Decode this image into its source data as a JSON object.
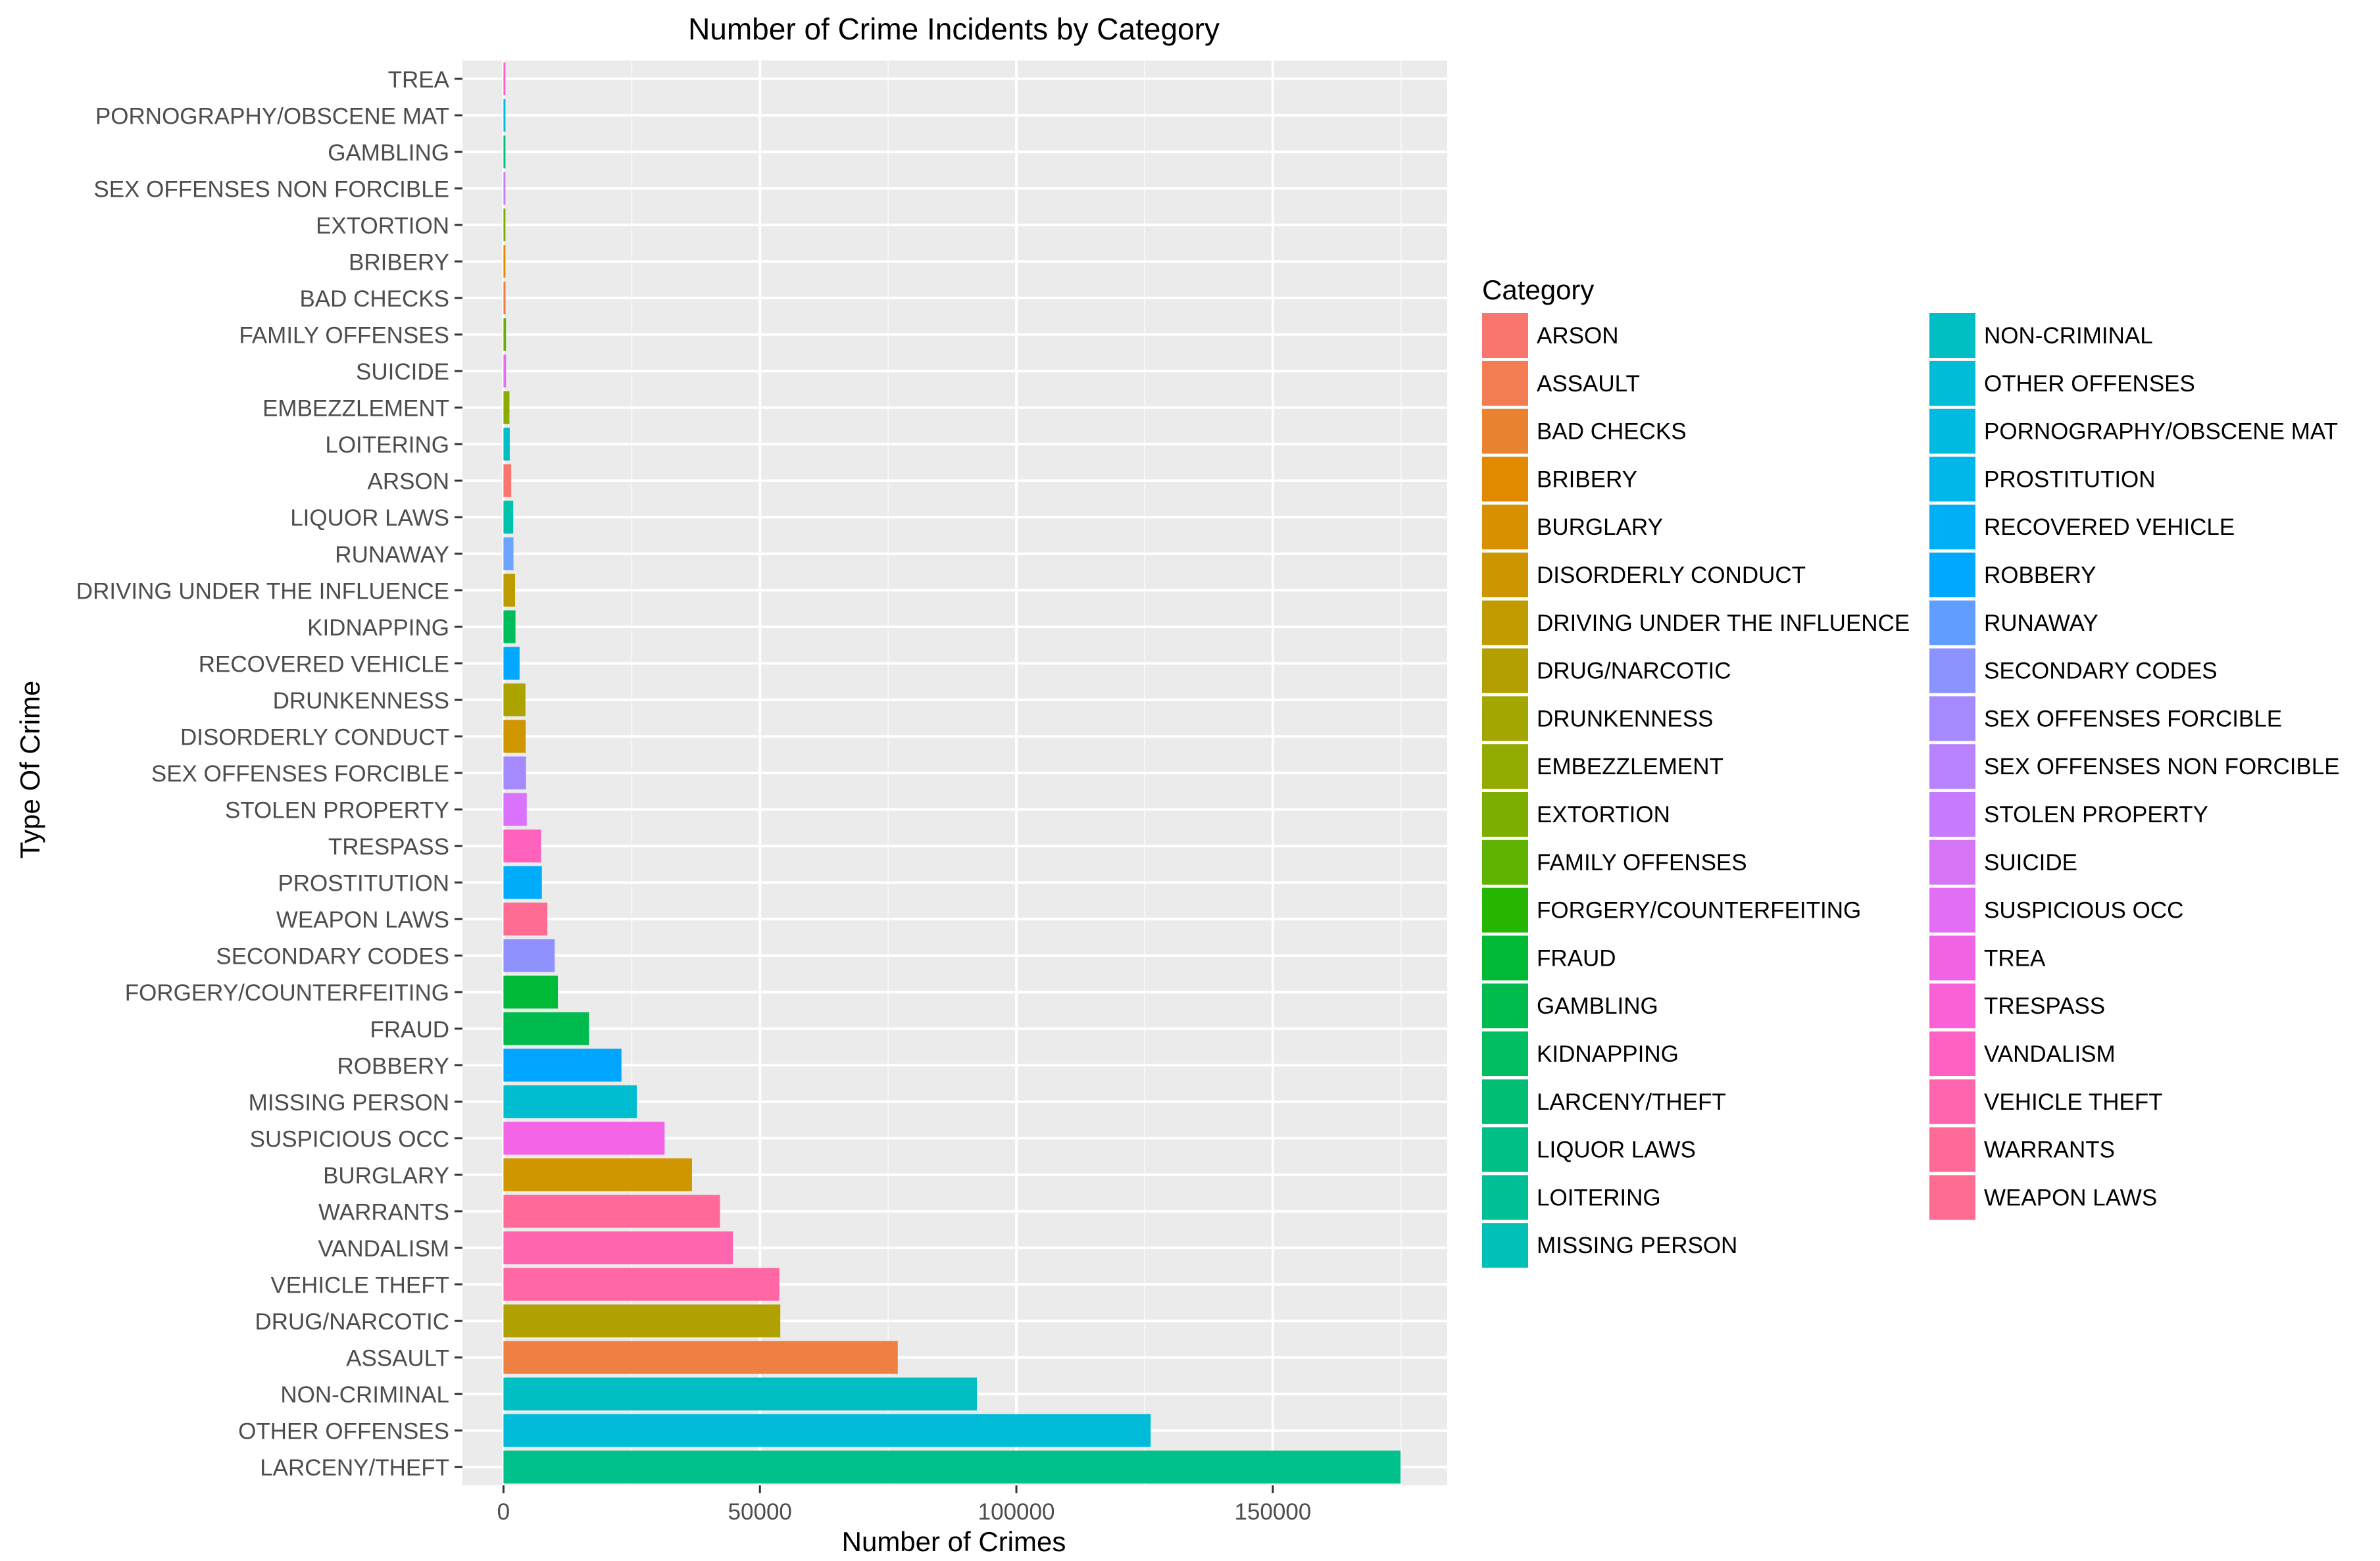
{
  "chart_data": {
    "type": "bar",
    "orientation": "horizontal",
    "title": "Number of Crime Incidents by Category",
    "xlabel": "Number of Crimes",
    "ylabel": "Type Of Crime",
    "xlim": [
      -8000,
      184000
    ],
    "x_ticks": [
      0,
      50000,
      100000,
      150000
    ],
    "grid": true,
    "legend_position": "right",
    "legend_title": "Category",
    "categories": [
      "TREA",
      "PORNOGRAPHY/OBSCENE MAT",
      "GAMBLING",
      "SEX OFFENSES NON FORCIBLE",
      "EXTORTION",
      "BRIBERY",
      "BAD CHECKS",
      "FAMILY OFFENSES",
      "SUICIDE",
      "EMBEZZLEMENT",
      "LOITERING",
      "ARSON",
      "LIQUOR LAWS",
      "RUNAWAY",
      "DRIVING UNDER THE INFLUENCE",
      "KIDNAPPING",
      "RECOVERED VEHICLE",
      "DRUNKENNESS",
      "DISORDERLY CONDUCT",
      "SEX OFFENSES FORCIBLE",
      "STOLEN PROPERTY",
      "TRESPASS",
      "PROSTITUTION",
      "WEAPON LAWS",
      "SECONDARY CODES",
      "FORGERY/COUNTERFEITING",
      "FRAUD",
      "ROBBERY",
      "MISSING PERSON",
      "SUSPICIOUS OCC",
      "BURGLARY",
      "WARRANTS",
      "VANDALISM",
      "VEHICLE THEFT",
      "DRUG/NARCOTIC",
      "ASSAULT",
      "NON-CRIMINAL",
      "OTHER OFFENSES",
      "LARCENY/THEFT"
    ],
    "values": [
      6,
      22,
      146,
      148,
      256,
      289,
      406,
      491,
      508,
      1166,
      1225,
      1513,
      1903,
      1946,
      2268,
      2341,
      3138,
      4280,
      4320,
      4388,
      4540,
      7326,
      7484,
      8555,
      9985,
      10609,
      16679,
      23000,
      25989,
      31414,
      36755,
      42214,
      44725,
      53781,
      53971,
      76876,
      92304,
      126182,
      174900
    ],
    "colors": [
      "#FF61C9",
      "#00B8E5",
      "#00BF7D",
      "#C77CFF",
      "#7CAE00",
      "#E18A00",
      "#EE8043",
      "#64B200",
      "#E76BF3",
      "#8CAB00",
      "#00BFC4",
      "#F8766D",
      "#00C1AB",
      "#6BA5FF",
      "#BE9C00",
      "#00BD5C",
      "#00A9FF",
      "#ABA300",
      "#D09600",
      "#A58AFF",
      "#DB72FB",
      "#FF62BC",
      "#00ADFA",
      "#FF6C91",
      "#8F91FF",
      "#00BA38",
      "#00BB4E",
      "#00A5FF",
      "#00BDD0",
      "#F365E6",
      "#D09600",
      "#FF6A98",
      "#FF65AE",
      "#FF67A4",
      "#B0A000",
      "#EE8043",
      "#00BFC4",
      "#00BCD8",
      "#00C08B"
    ],
    "legend": {
      "columns": [
        [
          {
            "label": "ARSON",
            "color": "#F8766D"
          },
          {
            "label": "ASSAULT",
            "color": "#F27D52"
          },
          {
            "label": "BAD CHECKS",
            "color": "#EA8331"
          },
          {
            "label": "BRIBERY",
            "color": "#E18A00"
          },
          {
            "label": "BURGLARY",
            "color": "#D89000"
          },
          {
            "label": "DISORDERLY CONDUCT",
            "color": "#CD9600"
          },
          {
            "label": "DRIVING UNDER THE INFLUENCE",
            "color": "#C09B00"
          },
          {
            "label": "DRUG/NARCOTIC",
            "color": "#B3A000"
          },
          {
            "label": "DRUNKENNESS",
            "color": "#A3A500"
          },
          {
            "label": "EMBEZZLEMENT",
            "color": "#93AA00"
          },
          {
            "label": "EXTORTION",
            "color": "#7CAE00"
          },
          {
            "label": "FAMILY OFFENSES",
            "color": "#5EB300"
          },
          {
            "label": "FORGERY/COUNTERFEITING",
            "color": "#27B600"
          },
          {
            "label": "FRAUD",
            "color": "#00B935"
          },
          {
            "label": "GAMBLING",
            "color": "#00BB4E"
          },
          {
            "label": "KIDNAPPING",
            "color": "#00BD62"
          },
          {
            "label": "LARCENY/THEFT",
            "color": "#00BE74"
          },
          {
            "label": "LIQUOR LAWS",
            "color": "#00BF86"
          },
          {
            "label": "LOITERING",
            "color": "#00C097"
          },
          {
            "label": "MISSING PERSON",
            "color": "#00C0B8"
          }
        ],
        [
          {
            "label": "NON-CRIMINAL",
            "color": "#00BFC4"
          },
          {
            "label": "OTHER OFFENSES",
            "color": "#00BCD6"
          },
          {
            "label": "PORNOGRAPHY/OBSCENE MAT",
            "color": "#00BAE0"
          },
          {
            "label": "PROSTITUTION",
            "color": "#00B6EB"
          },
          {
            "label": "RECOVERED VEHICLE",
            "color": "#00B0F6"
          },
          {
            "label": "ROBBERY",
            "color": "#00A9FF"
          },
          {
            "label": "RUNAWAY",
            "color": "#619CFF"
          },
          {
            "label": "SECONDARY CODES",
            "color": "#8B93FF"
          },
          {
            "label": "SEX OFFENSES FORCIBLE",
            "color": "#A58AFF"
          },
          {
            "label": "SEX OFFENSES NON FORCIBLE",
            "color": "#B983FF"
          },
          {
            "label": "STOLEN PROPERTY",
            "color": "#C77CFF"
          },
          {
            "label": "SUICIDE",
            "color": "#D675F5"
          },
          {
            "label": "SUSPICIOUS OCC",
            "color": "#E36EF6"
          },
          {
            "label": "TREA",
            "color": "#F064E4"
          },
          {
            "label": "TRESPASS",
            "color": "#FB61D7"
          },
          {
            "label": "VANDALISM",
            "color": "#FF61C3"
          },
          {
            "label": "VEHICLE THEFT",
            "color": "#FF65AE"
          },
          {
            "label": "WARRANTS",
            "color": "#FF6A98"
          },
          {
            "label": "WEAPON LAWS",
            "color": "#FF6C91"
          }
        ]
      ]
    }
  }
}
